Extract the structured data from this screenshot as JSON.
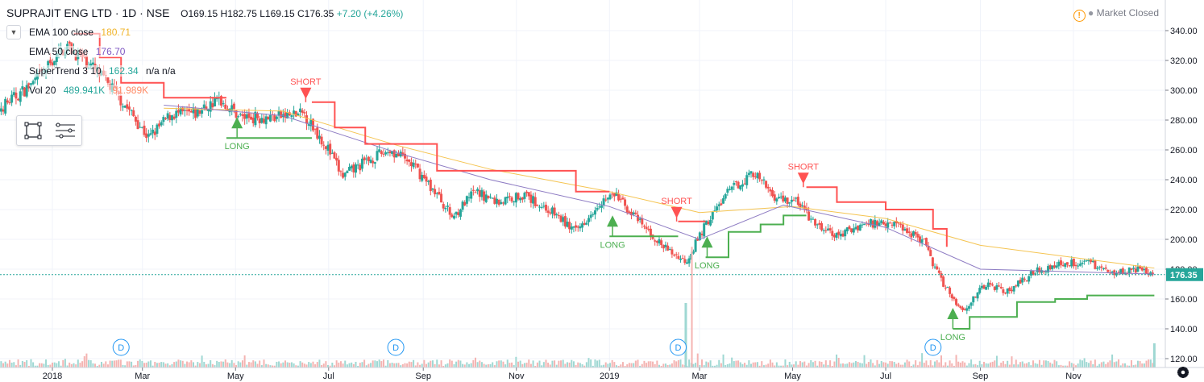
{
  "header": {
    "symbol": "SUPRAJIT ENG LTD · 1D · NSE",
    "open": "O169.15",
    "high": "H182.75",
    "low": "L169.15",
    "close": "C176.35",
    "change": "+7.20 (+4.26%)"
  },
  "market_status": "Market Closed",
  "studies": [
    {
      "label": "EMA 100 close",
      "value": "180.71",
      "color": "#f0b429"
    },
    {
      "label": "EMA 50 close",
      "value": "176.70",
      "color": "#7e57c2"
    },
    {
      "label": "SuperTrend 3 10",
      "value": "162.34",
      "extra": "n/a n/a",
      "color": "#26a69a"
    },
    {
      "label": "Vol 20",
      "value": "489.941K",
      "extra": "91.989K",
      "color": "#26a69a",
      "extra_color": "#ff8a65"
    }
  ],
  "last_price_label": "176.35",
  "icons": {
    "warning": "warning-icon",
    "collapse": "chevron-down-icon",
    "select": "rect-select-icon",
    "menu": "menu-icon",
    "settings": "gear-icon"
  },
  "colors": {
    "up_candle": "#26a69a",
    "down_candle": "#ef5350",
    "ema100": "#f5c451",
    "ema50": "#8e7cc3",
    "supertrend_up": "#4caf50",
    "supertrend_down": "#ff5252",
    "long": "#4caf50",
    "short": "#ff5252",
    "dividend": "#2196f3",
    "last_price": "#26a69a"
  },
  "chart_data": {
    "type": "line",
    "description_series": "candlestick",
    "ylim": [
      120,
      350
    ],
    "y_ticks": [
      120,
      140,
      160,
      180,
      200,
      220,
      240,
      260,
      280,
      300,
      320,
      340
    ],
    "y_tick_labels": [
      "120.00",
      "140.00",
      "160.00",
      "180.00",
      "200.00",
      "220.00",
      "240.00",
      "260.00",
      "280.00",
      "300.00",
      "320.00",
      "340.00"
    ],
    "x_ticks": [
      {
        "label": "2018",
        "date": "2018-01-01"
      },
      {
        "label": "Mar",
        "date": "2018-03-01"
      },
      {
        "label": "May",
        "date": "2018-05-01"
      },
      {
        "label": "Jul",
        "date": "2018-07-01"
      },
      {
        "label": "Sep",
        "date": "2018-09-01"
      },
      {
        "label": "Nov",
        "date": "2018-11-01"
      },
      {
        "label": "2019",
        "date": "2019-01-01"
      },
      {
        "label": "Mar",
        "date": "2019-03-01"
      },
      {
        "label": "May",
        "date": "2019-05-01"
      },
      {
        "label": "Jul",
        "date": "2019-07-01"
      },
      {
        "label": "Sep",
        "date": "2019-09-01"
      },
      {
        "label": "Nov",
        "date": "2019-11-01"
      }
    ],
    "price_path": [
      [
        "2017-11-20",
        282
      ],
      [
        "2017-12-20",
        305
      ],
      [
        "2018-01-10",
        330
      ],
      [
        "2018-01-25",
        318
      ],
      [
        "2018-02-10",
        300
      ],
      [
        "2018-02-22",
        284
      ],
      [
        "2018-03-05",
        268
      ],
      [
        "2018-03-20",
        284
      ],
      [
        "2018-04-05",
        284
      ],
      [
        "2018-04-20",
        294
      ],
      [
        "2018-05-05",
        282
      ],
      [
        "2018-05-25",
        282
      ],
      [
        "2018-06-15",
        284
      ],
      [
        "2018-06-30",
        262
      ],
      [
        "2018-07-10",
        242
      ],
      [
        "2018-07-25",
        252
      ],
      [
        "2018-08-10",
        260
      ],
      [
        "2018-08-25",
        250
      ],
      [
        "2018-09-10",
        230
      ],
      [
        "2018-09-20",
        215
      ],
      [
        "2018-10-05",
        232
      ],
      [
        "2018-10-20",
        225
      ],
      [
        "2018-11-05",
        230
      ],
      [
        "2018-11-25",
        218
      ],
      [
        "2018-12-10",
        205
      ],
      [
        "2018-12-25",
        225
      ],
      [
        "2019-01-05",
        230
      ],
      [
        "2019-01-20",
        212
      ],
      [
        "2019-02-05",
        195
      ],
      [
        "2019-02-20",
        185
      ],
      [
        "2019-03-05",
        210
      ],
      [
        "2019-03-20",
        232
      ],
      [
        "2019-04-05",
        245
      ],
      [
        "2019-04-20",
        228
      ],
      [
        "2019-05-05",
        225
      ],
      [
        "2019-05-15",
        210
      ],
      [
        "2019-05-30",
        202
      ],
      [
        "2019-06-15",
        210
      ],
      [
        "2019-07-05",
        212
      ],
      [
        "2019-07-25",
        200
      ],
      [
        "2019-08-05",
        175
      ],
      [
        "2019-08-20",
        152
      ],
      [
        "2019-09-05",
        170
      ],
      [
        "2019-09-20",
        165
      ],
      [
        "2019-10-05",
        178
      ],
      [
        "2019-10-25",
        184
      ],
      [
        "2019-11-10",
        185
      ],
      [
        "2019-11-25",
        178
      ],
      [
        "2019-12-10",
        180
      ],
      [
        "2019-12-24",
        176.35
      ]
    ],
    "series": [
      {
        "name": "EMA 100 close",
        "values": [
          [
            "2018-03-15",
            288
          ],
          [
            "2018-06-01",
            286
          ],
          [
            "2018-08-15",
            263
          ],
          [
            "2018-10-15",
            247
          ],
          [
            "2019-01-01",
            232
          ],
          [
            "2019-03-01",
            218
          ],
          [
            "2019-05-01",
            222
          ],
          [
            "2019-07-01",
            214
          ],
          [
            "2019-09-01",
            196
          ],
          [
            "2019-12-24",
            180.71
          ]
        ]
      },
      {
        "name": "EMA 50 close",
        "values": [
          [
            "2018-03-15",
            290
          ],
          [
            "2018-06-01",
            283
          ],
          [
            "2018-08-15",
            258
          ],
          [
            "2018-10-15",
            240
          ],
          [
            "2019-01-01",
            222
          ],
          [
            "2019-03-01",
            200
          ],
          [
            "2019-04-25",
            223
          ],
          [
            "2019-07-01",
            208
          ],
          [
            "2019-09-01",
            180
          ],
          [
            "2019-12-24",
            176.7
          ]
        ]
      }
    ],
    "supertrend": [
      {
        "trend": "down",
        "points": [
          [
            "2018-01-15",
            338
          ],
          [
            "2018-02-01",
            322
          ],
          [
            "2018-02-15",
            305
          ],
          [
            "2018-03-15",
            295
          ],
          [
            "2018-04-25",
            295
          ]
        ]
      },
      {
        "trend": "up",
        "points": [
          [
            "2018-04-25",
            268
          ],
          [
            "2018-05-15",
            268
          ],
          [
            "2018-06-20",
            268
          ]
        ]
      },
      {
        "trend": "down",
        "points": [
          [
            "2018-06-20",
            292
          ],
          [
            "2018-07-05",
            275
          ],
          [
            "2018-07-25",
            264
          ],
          [
            "2018-08-25",
            264
          ],
          [
            "2018-09-10",
            246
          ],
          [
            "2018-11-25",
            246
          ],
          [
            "2018-12-10",
            232
          ],
          [
            "2019-01-01",
            232
          ]
        ]
      },
      {
        "trend": "up",
        "points": [
          [
            "2019-01-01",
            202
          ],
          [
            "2019-02-15",
            202
          ]
        ]
      },
      {
        "trend": "down",
        "points": [
          [
            "2019-02-15",
            212
          ],
          [
            "2019-03-05",
            212
          ]
        ]
      },
      {
        "trend": "up",
        "points": [
          [
            "2019-03-05",
            188
          ],
          [
            "2019-03-20",
            205
          ],
          [
            "2019-04-10",
            210
          ],
          [
            "2019-04-25",
            216
          ],
          [
            "2019-05-10",
            216
          ]
        ]
      },
      {
        "trend": "down",
        "points": [
          [
            "2019-05-10",
            235
          ],
          [
            "2019-05-30",
            225
          ],
          [
            "2019-07-01",
            220
          ],
          [
            "2019-08-01",
            207
          ],
          [
            "2019-08-10",
            195
          ]
        ]
      },
      {
        "trend": "up",
        "points": [
          [
            "2019-08-14",
            140
          ],
          [
            "2019-08-25",
            148
          ],
          [
            "2019-09-25",
            158
          ],
          [
            "2019-10-20",
            160
          ],
          [
            "2019-11-10",
            162.34
          ],
          [
            "2019-12-24",
            162.34
          ]
        ]
      }
    ],
    "signals": [
      {
        "type": "LONG",
        "date": "2018-05-02",
        "price": 268
      },
      {
        "type": "SHORT",
        "date": "2018-06-16",
        "price": 292
      },
      {
        "type": "LONG",
        "date": "2019-01-03",
        "price": 202
      },
      {
        "type": "SHORT",
        "date": "2019-02-14",
        "price": 212
      },
      {
        "type": "LONG",
        "date": "2019-03-06",
        "price": 188
      },
      {
        "type": "SHORT",
        "date": "2019-05-08",
        "price": 235
      },
      {
        "type": "LONG",
        "date": "2019-08-14",
        "price": 140
      }
    ],
    "dividends": [
      {
        "label": "D",
        "date": "2018-02-15"
      },
      {
        "label": "D",
        "date": "2018-08-14"
      },
      {
        "label": "D",
        "date": "2019-02-15"
      },
      {
        "label": "D",
        "date": "2019-08-01"
      }
    ],
    "last_price": 176.35,
    "grid": true,
    "legend": "top-left"
  }
}
